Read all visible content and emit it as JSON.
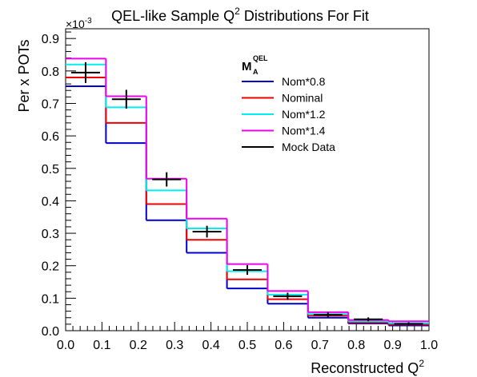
{
  "chart_data": {
    "type": "step-histogram",
    "title": "QEL-like Sample Q",
    "title_sup": "2",
    "title_rest": " Distributions For Fit",
    "xlabel": "Reconstructed Q",
    "xlabel_sup": "2",
    "ylabel": "Per x POTs",
    "y_exponent_label": "×10",
    "y_exponent_sup": "-3",
    "xlim": [
      0.0,
      1.0
    ],
    "ylim": [
      0.0,
      0.93
    ],
    "x_ticks": [
      "0.0",
      "0.1",
      "0.2",
      "0.3",
      "0.4",
      "0.5",
      "0.6",
      "0.7",
      "0.8",
      "0.9",
      "1.0"
    ],
    "y_ticks": [
      "0.0",
      "0.1",
      "0.2",
      "0.3",
      "0.4",
      "0.5",
      "0.6",
      "0.7",
      "0.8",
      "0.9"
    ],
    "bin_edges": [
      0.0,
      0.111,
      0.222,
      0.333,
      0.444,
      0.556,
      0.667,
      0.778,
      0.889,
      1.0
    ],
    "series": [
      {
        "name": "Nom*0.8",
        "color": "#0000cc",
        "values": [
          0.753,
          0.578,
          0.34,
          0.24,
          0.13,
          0.083,
          0.04,
          0.022,
          0.016
        ]
      },
      {
        "name": "Nominal",
        "color": "#ee0000",
        "values": [
          0.78,
          0.64,
          0.39,
          0.28,
          0.158,
          0.097,
          0.046,
          0.025,
          0.019
        ]
      },
      {
        "name": "Nom*1.2",
        "color": "#00eeee",
        "values": [
          0.82,
          0.688,
          0.432,
          0.315,
          0.183,
          0.111,
          0.051,
          0.029,
          0.023
        ]
      },
      {
        "name": "Nom*1.4",
        "color": "#ee00ee",
        "values": [
          0.838,
          0.722,
          0.468,
          0.345,
          0.205,
          0.122,
          0.057,
          0.033,
          0.029
        ]
      }
    ],
    "mock_data": {
      "name": "Mock Data",
      "color": "#000000",
      "x": [
        0.055,
        0.167,
        0.278,
        0.389,
        0.5,
        0.611,
        0.722,
        0.833,
        0.944
      ],
      "y": [
        0.795,
        0.713,
        0.466,
        0.305,
        0.187,
        0.106,
        0.049,
        0.035,
        0.021
      ],
      "yerr": [
        0.032,
        0.029,
        0.022,
        0.018,
        0.015,
        0.011,
        0.008,
        0.006,
        0.005
      ]
    },
    "legend": {
      "header": "M",
      "header_sub": "A",
      "header_sup": "QEL",
      "placement": "top-center"
    }
  }
}
